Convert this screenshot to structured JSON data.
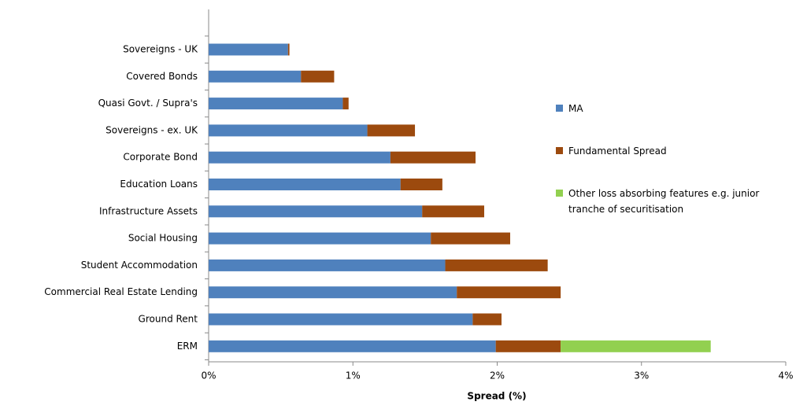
{
  "chart_data": {
    "type": "stacked_bar_horizontal",
    "x_label": "Spread (%)",
    "categories": [
      "Sovereigns - UK",
      "Covered Bonds",
      "Quasi Govt. / Supra's",
      "Sovereigns - ex. UK",
      "Corporate Bond",
      "Education Loans",
      "Infrastructure Assets",
      "Social Housing",
      "Student Accommodation",
      "Commercial Real Estate Lending",
      "Ground Rent",
      "ERM"
    ],
    "series": [
      {
        "name": "MA",
        "color": "#4f81bd",
        "values": [
          0.55,
          0.64,
          0.93,
          1.1,
          1.26,
          1.33,
          1.48,
          1.54,
          1.64,
          1.72,
          1.83,
          1.99
        ]
      },
      {
        "name": "Fundamental Spread",
        "color": "#9c4a0e",
        "values": [
          0.01,
          0.23,
          0.04,
          0.33,
          0.59,
          0.29,
          0.43,
          0.55,
          0.71,
          0.72,
          0.2,
          0.45
        ]
      },
      {
        "name": "Other loss absorbing features e.g. junior tranche of securitisation",
        "color": "#92d050",
        "values": [
          0,
          0,
          0,
          0,
          0,
          0,
          0,
          0,
          0,
          0,
          0,
          1.04
        ]
      }
    ],
    "xlim": [
      0,
      4
    ],
    "xticks": [
      {
        "value": 0,
        "label": "0%"
      },
      {
        "value": 1,
        "label": "1%"
      },
      {
        "value": 2,
        "label": "2%"
      },
      {
        "value": 3,
        "label": "3%"
      },
      {
        "value": 4,
        "label": "4%"
      }
    ],
    "legend": "right"
  }
}
